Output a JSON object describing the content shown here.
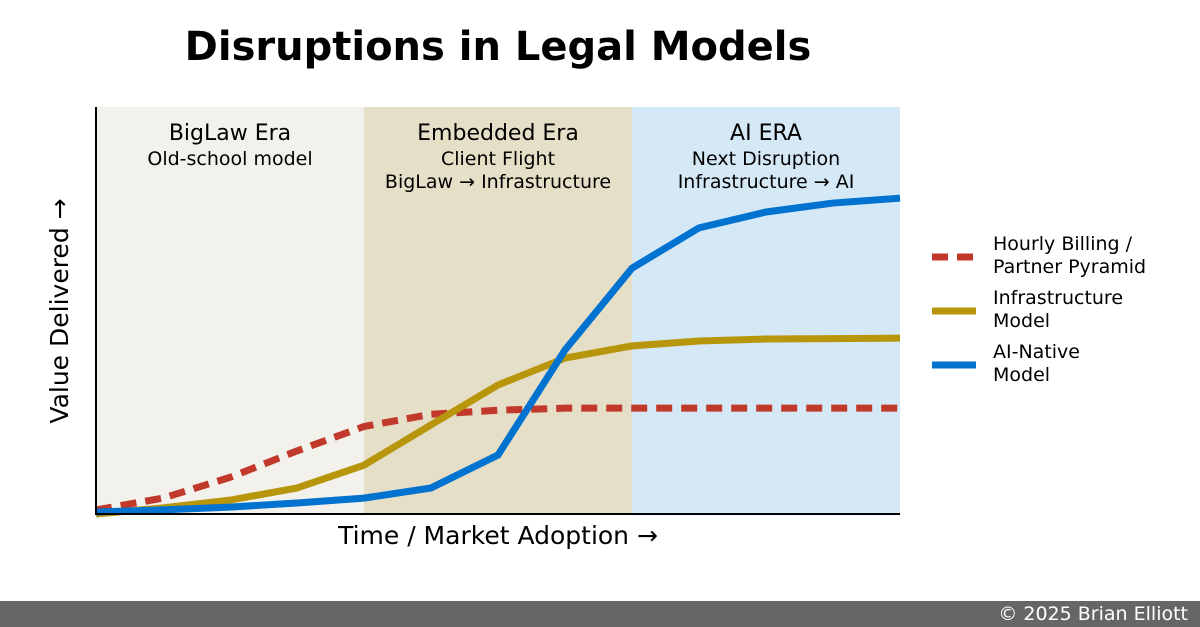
{
  "chart_data": {
    "type": "line",
    "title": "Disruptions in Legal Models",
    "x_label": "Time / Market Adoption →",
    "y_label": "Value Delivered →",
    "xlim": [
      0,
      3
    ],
    "ylim": [
      0,
      100
    ],
    "x": [
      0,
      0.25,
      0.5,
      0.75,
      1,
      1.25,
      1.5,
      1.75,
      2,
      2.25,
      2.5,
      2.75,
      3
    ],
    "regions": [
      {
        "label": "BigLaw Era",
        "sublabel": "Old-school model",
        "start": 0,
        "end": 1,
        "color": "#f2f1ec"
      },
      {
        "label": "Embedded Era",
        "sublabel": "Client Flight\nBigLaw → Infrastructure",
        "start": 1,
        "end": 2,
        "color": "#e6dfc7"
      },
      {
        "label": "AI ERA",
        "sublabel": "Next Disruption\nInfrastructure → AI",
        "start": 2,
        "end": 3,
        "color": "#d5e8f6"
      }
    ],
    "series": [
      {
        "name": "Hourly Billing /\nPartner Pyramid",
        "color": "#c0392b",
        "dash": true,
        "values": [
          1,
          3.9,
          9,
          15.5,
          21.5,
          24.5,
          25.5,
          26,
          26,
          26,
          26,
          26,
          26
        ]
      },
      {
        "name": "Infrastructure\nModel",
        "color": "#b8960c",
        "dash": false,
        "values": [
          0,
          1.5,
          3.4,
          6.4,
          12,
          21.9,
          31.7,
          38.3,
          41.3,
          42.5,
          43,
          43.1,
          43.2
        ]
      },
      {
        "name": "AI-Native\nModel",
        "color": "#0072d0",
        "dash": false,
        "values": [
          0.5,
          1,
          1.7,
          2.7,
          3.9,
          6.4,
          14.5,
          40.3,
          60.4,
          70.3,
          74.2,
          76.4,
          77.6
        ]
      }
    ],
    "legend": "right"
  },
  "footer": "© 2025 Brian Elliott"
}
